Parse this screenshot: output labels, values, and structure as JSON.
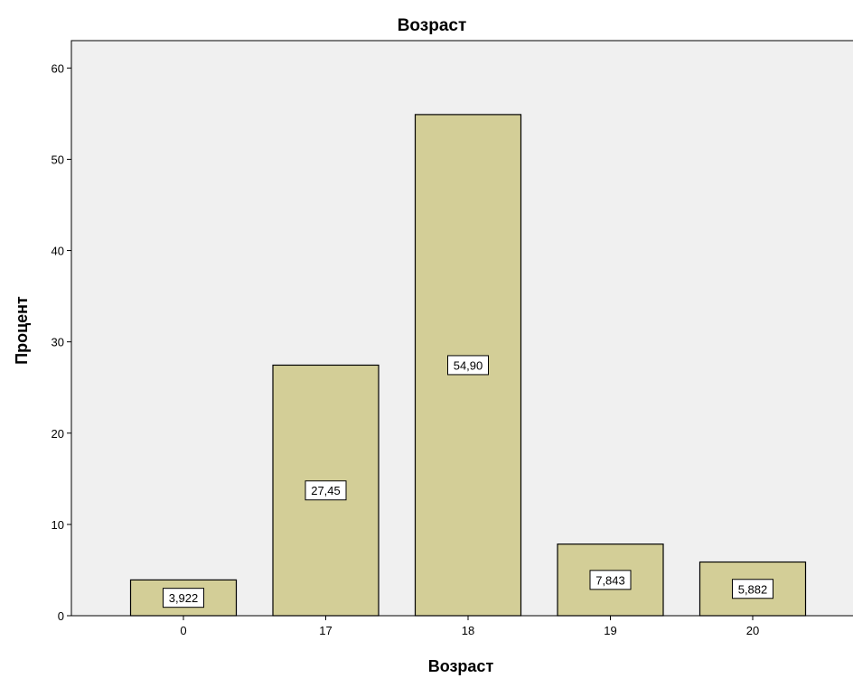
{
  "chart_data": {
    "type": "bar",
    "title": "Возраст",
    "xlabel": "Возраст",
    "ylabel": "Процент",
    "categories": [
      "0",
      "17",
      "18",
      "19",
      "20"
    ],
    "values": [
      3.922,
      27.45,
      54.9,
      7.843,
      5.882
    ],
    "data_labels": [
      "3,922",
      "27,45",
      "54,90",
      "7,843",
      "5,882"
    ],
    "ylim": [
      0,
      63
    ],
    "yticks": [
      0,
      10,
      20,
      30,
      40,
      50,
      60
    ],
    "grid": false,
    "legend": "none",
    "colors": {
      "bar_fill": "#d3ce97",
      "bar_stroke": "#000000",
      "plot_background": "#f0f0f0"
    }
  }
}
